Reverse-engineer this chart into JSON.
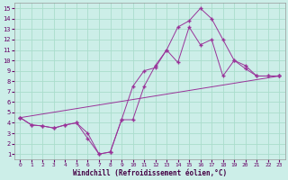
{
  "xlabel": "Windchill (Refroidissement éolien,°C)",
  "bg_color": "#cceee8",
  "grid_color": "#aaddcc",
  "line_color": "#993399",
  "xlim": [
    -0.5,
    23.5
  ],
  "ylim": [
    0.5,
    15.5
  ],
  "xticks": [
    0,
    1,
    2,
    3,
    4,
    5,
    6,
    7,
    8,
    9,
    10,
    11,
    12,
    13,
    14,
    15,
    16,
    17,
    18,
    19,
    20,
    21,
    22,
    23
  ],
  "yticks": [
    1,
    2,
    3,
    4,
    5,
    6,
    7,
    8,
    9,
    10,
    11,
    12,
    13,
    14,
    15
  ],
  "line1_x": [
    0,
    1,
    2,
    3,
    4,
    5,
    6,
    7,
    8,
    9,
    10,
    11,
    12,
    13,
    14,
    15,
    16,
    17,
    18,
    19,
    20,
    21,
    22,
    23
  ],
  "line1_y": [
    4.5,
    3.8,
    3.7,
    3.5,
    3.8,
    4.0,
    2.5,
    1.0,
    1.2,
    4.3,
    7.5,
    9.0,
    9.3,
    11.0,
    13.2,
    13.8,
    15.0,
    14.0,
    12.0,
    10.0,
    9.5,
    8.5,
    8.5,
    8.5
  ],
  "line2_x": [
    0,
    1,
    2,
    3,
    4,
    5,
    6,
    7,
    8,
    9,
    10,
    11,
    12,
    13,
    14,
    15,
    16,
    17,
    18,
    19,
    20,
    21,
    22,
    23
  ],
  "line2_y": [
    4.5,
    3.8,
    3.7,
    3.5,
    3.8,
    4.0,
    3.0,
    1.0,
    1.2,
    4.3,
    4.3,
    7.5,
    9.5,
    11.0,
    9.8,
    13.2,
    11.5,
    12.0,
    8.5,
    10.0,
    9.2,
    8.5,
    8.5,
    8.5
  ],
  "line3_x": [
    0,
    23
  ],
  "line3_y": [
    4.5,
    8.5
  ]
}
